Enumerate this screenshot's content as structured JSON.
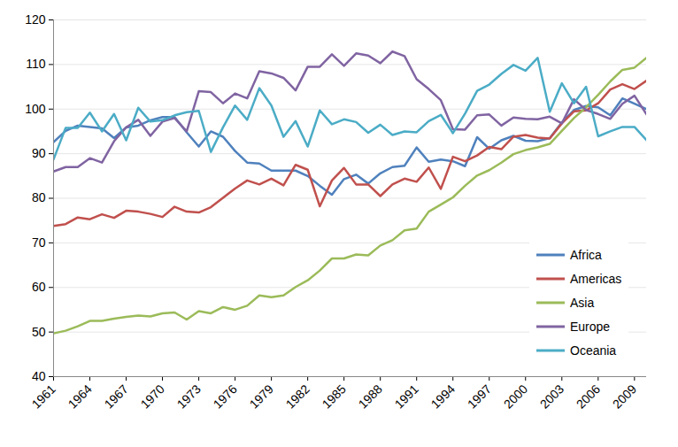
{
  "chart_data": {
    "type": "line",
    "x": [
      1961,
      1962,
      1963,
      1964,
      1965,
      1966,
      1967,
      1968,
      1969,
      1970,
      1971,
      1972,
      1973,
      1974,
      1975,
      1976,
      1977,
      1978,
      1979,
      1980,
      1981,
      1982,
      1983,
      1984,
      1985,
      1986,
      1987,
      1988,
      1989,
      1990,
      1991,
      1992,
      1993,
      1994,
      1995,
      1996,
      1997,
      1998,
      1999,
      2000,
      2001,
      2002,
      2003,
      2004,
      2005,
      2006,
      2007,
      2008,
      2009,
      2010
    ],
    "series": [
      {
        "name": "Africa",
        "color": "#4f81bd",
        "values": [
          92.6,
          95.1,
          96.3,
          96,
          95.7,
          93.5,
          95.9,
          96.3,
          97.5,
          98.2,
          98.2,
          94.8,
          91.6,
          95,
          93.8,
          90.6,
          88,
          87.8,
          86.2,
          86.2,
          86.2,
          85,
          82.8,
          80.8,
          84.3,
          85.3,
          83.3,
          85.6,
          87,
          87.3,
          91.4,
          88.2,
          88.7,
          88.3,
          87.2,
          93.7,
          91.1,
          93,
          94,
          92.9,
          92.8,
          93.5,
          97,
          99.8,
          100.7,
          100.4,
          98.6,
          102.4,
          101.2,
          100
        ]
      },
      {
        "name": "Americas",
        "color": "#c0504d",
        "values": [
          73.8,
          74.2,
          75.7,
          75.3,
          76.4,
          75.6,
          77.2,
          77,
          76.5,
          75.8,
          78.1,
          77,
          76.8,
          78,
          80.1,
          82.2,
          84,
          83.1,
          84.4,
          82.9,
          87.5,
          86.4,
          78.2,
          84,
          86.8,
          83.1,
          83.1,
          80.5,
          83.1,
          84.4,
          83.7,
          86.9,
          82.1,
          89.3,
          88.3,
          89.6,
          91.5,
          91,
          93.8,
          94.2,
          93.6,
          93.4,
          96.8,
          99.5,
          99.7,
          101.3,
          104.4,
          105.6,
          104.5,
          106.4
        ]
      },
      {
        "name": "Asia",
        "color": "#9bbb59",
        "values": [
          49.7,
          50.3,
          51.3,
          52.5,
          52.5,
          53,
          53.4,
          53.7,
          53.5,
          54.2,
          54.4,
          52.8,
          54.7,
          54.2,
          55.6,
          55,
          55.9,
          58.2,
          57.8,
          58.2,
          60.1,
          61.6,
          63.8,
          66.5,
          66.5,
          67.4,
          67.2,
          69.4,
          70.6,
          72.8,
          73.2,
          77,
          78.6,
          80.2,
          82.8,
          85.1,
          86.3,
          88,
          89.9,
          90.8,
          91.4,
          92.2,
          95.1,
          98,
          100.4,
          103.2,
          106.2,
          108.8,
          109.3,
          111.5
        ]
      },
      {
        "name": "Europe",
        "color": "#8064a2",
        "values": [
          86,
          87,
          87,
          89,
          88,
          92.8,
          95.9,
          97.6,
          94,
          97.2,
          98,
          95,
          104,
          103.8,
          101.3,
          103.5,
          102.4,
          108.5,
          108,
          107,
          104.2,
          109.5,
          109.5,
          112.3,
          109.7,
          112.5,
          112,
          110.3,
          112.9,
          111.9,
          106.7,
          104.5,
          102,
          95.5,
          95.4,
          98.6,
          98.8,
          96.3,
          98.1,
          97.8,
          97.7,
          98.3,
          96.8,
          102.2,
          99.8,
          98.9,
          97.8,
          101.2,
          103,
          98.8
        ]
      },
      {
        "name": "Oceania",
        "color": "#4bacc6",
        "values": [
          88.7,
          95.8,
          95.8,
          99.2,
          95,
          98.9,
          93,
          100.3,
          97.2,
          97.5,
          98.6,
          99.3,
          99.6,
          90.4,
          95.9,
          100.8,
          97.6,
          104.7,
          100.8,
          93.8,
          97.3,
          91.6,
          99.7,
          96.6,
          97.7,
          97.1,
          94.7,
          96.5,
          94.2,
          95,
          94.8,
          97.3,
          98.7,
          94.6,
          99,
          104.1,
          105.5,
          107.9,
          109.9,
          108.6,
          111.5,
          99.4,
          105.8,
          101.3,
          105,
          93.9,
          95,
          96,
          96,
          93
        ]
      }
    ],
    "xlim": [
      1961,
      2010
    ],
    "xticks": [
      1961,
      1964,
      1967,
      1970,
      1973,
      1976,
      1979,
      1982,
      1985,
      1988,
      1991,
      1994,
      1997,
      2000,
      2003,
      2006,
      2009
    ],
    "ylim": [
      40,
      120
    ],
    "yticks": [
      40,
      50,
      60,
      70,
      80,
      90,
      100,
      110,
      120
    ],
    "grid": true,
    "legend": "lower right"
  }
}
